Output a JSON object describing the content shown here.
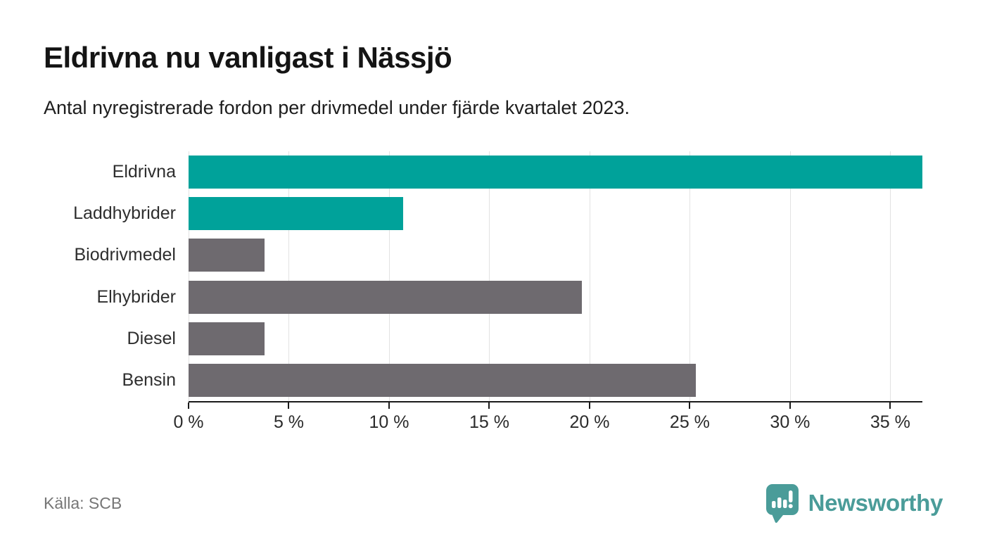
{
  "header": {
    "title": "Eldrivna nu vanligast i Nässjö",
    "subtitle": "Antal nyregistrerade fordon per drivmedel under fjärde kvartalet 2023."
  },
  "footer": {
    "source": "Källa: SCB",
    "brand_name": "Newsworthy"
  },
  "colors": {
    "highlight": "#00A29A",
    "neutral": "#6E6A6F",
    "grid": "#E2E2E2",
    "axis": "#1A1A1A",
    "brand": "#4A9C99"
  },
  "chart_data": {
    "type": "bar",
    "orientation": "horizontal",
    "title": "Eldrivna nu vanligast i Nässjö",
    "subtitle": "Antal nyregistrerade fordon per drivmedel under fjärde kvartalet 2023.",
    "categories": [
      "Eldrivna",
      "Laddhybrider",
      "Biodrivmedel",
      "Elhybrider",
      "Diesel",
      "Bensin"
    ],
    "values": [
      36.6,
      10.7,
      3.8,
      19.6,
      3.8,
      25.3
    ],
    "unit": "%",
    "bar_colors": [
      "#00A29A",
      "#00A29A",
      "#6E6A6F",
      "#6E6A6F",
      "#6E6A6F",
      "#6E6A6F"
    ],
    "xlim": [
      0,
      36.6
    ],
    "x_ticks": [
      0,
      5,
      10,
      15,
      20,
      25,
      30,
      35
    ],
    "x_tick_suffix": " %",
    "grid": true,
    "legend": false,
    "gridlines_at": [
      0,
      5,
      10,
      15,
      20,
      25,
      30,
      35
    ]
  }
}
